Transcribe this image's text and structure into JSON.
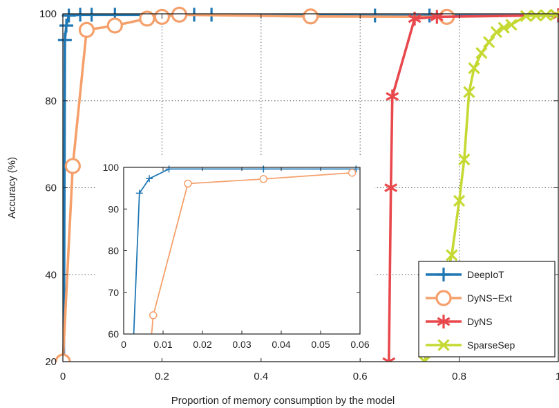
{
  "chart_data": [
    {
      "type": "line",
      "role": "main",
      "xlabel": "Proportion of memory consumption by the model",
      "ylabel": "Accuracy (%)",
      "xlim": [
        0,
        1
      ],
      "ylim": [
        20,
        100
      ],
      "xticks": [
        0,
        0.2,
        0.4,
        0.6,
        0.8,
        1.0
      ],
      "xtick_labels": [
        "0",
        "0.2",
        "0.4",
        "0.6",
        "0.8",
        "1"
      ],
      "yticks": [
        20,
        40,
        60,
        80,
        100
      ],
      "ytick_labels": [
        "20",
        "40",
        "60",
        "80",
        "100"
      ],
      "grid": true,
      "legend_position": "bottom-right",
      "series": [
        {
          "name": "DeepIoT",
          "color": "#1f77b4",
          "marker": "plus",
          "x": [
            0.002,
            0.004,
            0.007,
            0.012,
            0.035,
            0.058,
            0.105,
            0.265,
            0.3,
            0.63,
            0.74,
            1.0
          ],
          "y": [
            20,
            94,
            97.3,
            99.6,
            99.8,
            99.8,
            99.8,
            99.8,
            99.8,
            99.6,
            99.6,
            99.6
          ]
        },
        {
          "name": "DyNS−Ext",
          "color": "#f5a06b",
          "marker": "circle",
          "x": [
            0.0,
            0.02,
            0.048,
            0.105,
            0.17,
            0.2,
            0.235,
            0.5,
            0.775
          ],
          "y": [
            20,
            65,
            96.3,
            97.3,
            98.9,
            99.3,
            99.8,
            99.4,
            99.3
          ]
        },
        {
          "name": "DyNS",
          "color": "#e8484c",
          "marker": "asterisk",
          "x": [
            0.658,
            0.662,
            0.665,
            0.71,
            0.755,
            1.0
          ],
          "y": [
            20,
            60,
            81,
            98.9,
            99.3,
            99.7
          ]
        },
        {
          "name": "SparseSep",
          "color": "#c5d932",
          "marker": "x",
          "x": [
            0.73,
            0.785,
            0.8,
            0.81,
            0.82,
            0.83,
            0.845,
            0.86,
            0.875,
            0.89,
            0.905,
            0.935,
            0.955,
            0.975,
            0.995
          ],
          "y": [
            20,
            44.5,
            57,
            66.5,
            82,
            87.5,
            91,
            93.5,
            95.8,
            96.8,
            97.5,
            99.5,
            99.6,
            99.7,
            99.8
          ]
        }
      ]
    },
    {
      "type": "line",
      "role": "inset",
      "xlim": [
        0,
        0.06
      ],
      "ylim": [
        60,
        100
      ],
      "xticks": [
        0,
        0.01,
        0.02,
        0.03,
        0.04,
        0.05,
        0.06
      ],
      "xtick_labels": [
        "0",
        "0.01",
        "0.02",
        "0.03",
        "0.04",
        "0.05",
        "0.06"
      ],
      "yticks": [
        60,
        70,
        80,
        90,
        100
      ],
      "ytick_labels": [
        "60",
        "70",
        "80",
        "90",
        "100"
      ],
      "grid": false,
      "series": [
        {
          "name": "DeepIoT",
          "color": "#1f77b4",
          "marker": "plus",
          "x": [
            0.0025,
            0.004,
            0.0065,
            0.0115,
            0.0355,
            0.059
          ],
          "y": [
            59,
            93.8,
            97.3,
            99.6,
            99.6,
            99.6
          ]
        },
        {
          "name": "DyNS−Ext",
          "color": "#f5a06b",
          "marker": "circle",
          "x": [
            0.007,
            0.0075,
            0.0163,
            0.0355,
            0.058
          ],
          "y": [
            59,
            64.5,
            96.1,
            97.2,
            98.7
          ]
        }
      ]
    }
  ]
}
